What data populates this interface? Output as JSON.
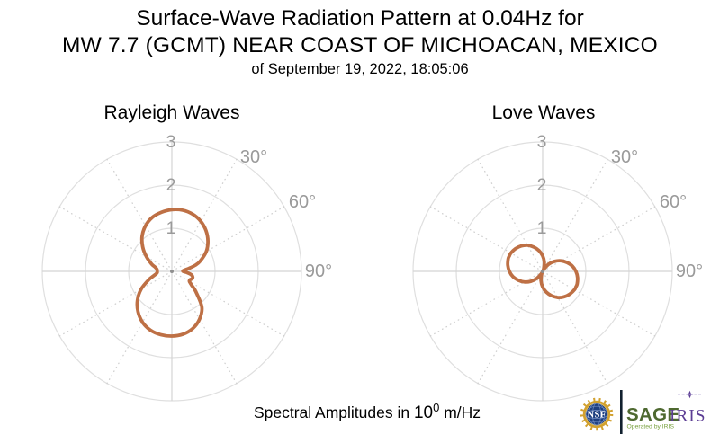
{
  "title": {
    "line1": "Surface-Wave Radiation Pattern at 0.04Hz for",
    "line2": "MW 7.7 (GCMT) NEAR COAST OF MICHOACAN, MEXICO",
    "line3": "of September 19, 2022, 18:05:06"
  },
  "caption": {
    "text_before": "Spectral Amplitudes in ",
    "base": "10",
    "exponent": "0",
    "suffix": " m/Hz"
  },
  "colors": {
    "curve": "#be7045",
    "grid_circle": "#dfdfdf",
    "grid_axis": "#d4d4d4",
    "grid_spoke": "#d0d0d0",
    "tick_label": "#9a9a9a",
    "center_dot": "#8f8f8f",
    "nsf_gold": "#d2a12f",
    "nsf_blue": "#1e3f7f",
    "sage_green": "#4e6930",
    "sage_sub_green": "#79a13f",
    "iris_purple": "#5c3d94",
    "divider_dark": "#11202e"
  },
  "logos": {
    "nsf_text": "NSF",
    "sage_text": "SAGE",
    "sage_subtext": "Operated by IRIS",
    "iris_text": "IRIS"
  },
  "chart_data": [
    {
      "type": "line",
      "projection": "polar",
      "title": "Rayleigh Waves",
      "theta_zero_location": "top",
      "theta_direction": "clockwise",
      "r_axis": {
        "ticks": [
          1,
          2,
          3
        ],
        "tick_labels": [
          "1",
          "2",
          "3"
        ],
        "rlim": [
          0,
          3
        ]
      },
      "theta_axis": {
        "labels_shown": [
          "30°",
          "60°",
          "90°"
        ],
        "label_angles_deg": [
          30,
          60,
          90
        ],
        "spoke_step_deg": 30
      },
      "series": [
        {
          "name": "Rayleigh spectral amplitude",
          "theta_deg": [
            0,
            10,
            20,
            30,
            40,
            50,
            60,
            70,
            75,
            80,
            85,
            90,
            95,
            100,
            105,
            110,
            115,
            120,
            125,
            130,
            140,
            150,
            160,
            170,
            180,
            190,
            200,
            210,
            220,
            230,
            240,
            250,
            255,
            260,
            265,
            270,
            275,
            280,
            285,
            290,
            300,
            310,
            320,
            330,
            340,
            350
          ],
          "r": [
            1.43,
            1.44,
            1.41,
            1.34,
            1.23,
            1.09,
            0.92,
            0.7,
            0.57,
            0.4,
            0.28,
            0.26,
            0.36,
            0.46,
            0.5,
            0.5,
            0.46,
            0.47,
            0.56,
            0.72,
            1.08,
            1.28,
            1.41,
            1.48,
            1.5,
            1.49,
            1.45,
            1.36,
            1.22,
            1.04,
            0.82,
            0.57,
            0.46,
            0.38,
            0.34,
            0.34,
            0.34,
            0.36,
            0.41,
            0.5,
            0.68,
            0.88,
            1.07,
            1.22,
            1.33,
            1.39
          ]
        }
      ]
    },
    {
      "type": "line",
      "projection": "polar",
      "title": "Love Waves",
      "theta_zero_location": "top",
      "theta_direction": "clockwise",
      "r_axis": {
        "ticks": [
          1,
          2,
          3
        ],
        "tick_labels": [
          "1",
          "2",
          "3"
        ],
        "rlim": [
          0,
          3
        ]
      },
      "theta_axis": {
        "labels_shown": [
          "30°",
          "60°",
          "90°"
        ],
        "label_angles_deg": [
          30,
          60,
          90
        ],
        "spoke_step_deg": 30
      },
      "series": [
        {
          "name": "Love spectral amplitude",
          "theta_deg": [
            0,
            10,
            20,
            25,
            30,
            40,
            50,
            60,
            70,
            80,
            90,
            100,
            110,
            115,
            120,
            130,
            140,
            150,
            160,
            170,
            180,
            190,
            200,
            205,
            210,
            220,
            230,
            240,
            250,
            260,
            270,
            280,
            290,
            295,
            300,
            310,
            320,
            330,
            340,
            350
          ],
          "r": [
            0.36,
            0.22,
            0.07,
            0.02,
            0.07,
            0.22,
            0.36,
            0.49,
            0.6,
            0.7,
            0.77,
            0.82,
            0.85,
            0.85,
            0.85,
            0.82,
            0.77,
            0.7,
            0.6,
            0.49,
            0.36,
            0.22,
            0.07,
            0.02,
            0.07,
            0.22,
            0.36,
            0.49,
            0.6,
            0.7,
            0.77,
            0.82,
            0.85,
            0.85,
            0.85,
            0.82,
            0.77,
            0.7,
            0.6,
            0.49
          ]
        }
      ]
    }
  ]
}
